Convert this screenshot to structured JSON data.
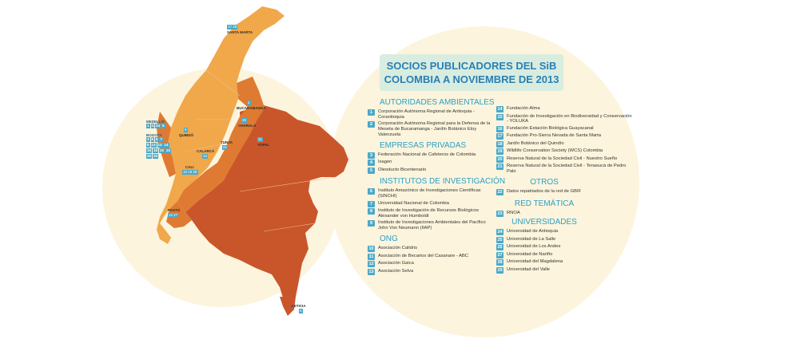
{
  "title": {
    "line1": "SOCIOS PUBLICADORES DEL SiB",
    "line2": "COLOMBIA A NOVIEMBRE DE 2013"
  },
  "colors": {
    "background_circle": "#fcf4dc",
    "title_box": "#d8ede0",
    "title_text": "#2a7fb5",
    "section_heading": "#2aa0c8",
    "number_badge": "#4aa9c9",
    "map_light": "#f0a84a",
    "map_medium": "#df7a32",
    "map_dark": "#c9562b"
  },
  "left_column": [
    {
      "heading": "AUTORIDADES AMBIENTALES",
      "items": [
        {
          "n": "1",
          "text": "Corporación Autónoma Regional de Antioquia - Corantioquia"
        },
        {
          "n": "2",
          "text": "Corporación Autónoma Regional para la Defensa de la Meseta de Bucaramanga - Jardín Botánico Eloy Valenzuela"
        }
      ]
    },
    {
      "heading": "EMPRESAS PRIVADAS",
      "items": [
        {
          "n": "3",
          "text": "Federación Nacional de Cafeteros de Colombia"
        },
        {
          "n": "4",
          "text": "Isagen"
        },
        {
          "n": "5",
          "text": "Oleoducto Bicentenario"
        }
      ]
    },
    {
      "heading": "INSTITUTOS DE INVESTIGACIÓN",
      "items": [
        {
          "n": "6",
          "text": "Instituto Amazónico de Investigaciones Científicas (SINCHI)"
        },
        {
          "n": "7",
          "text": "Universidad Nacional de Colombia"
        },
        {
          "n": "8",
          "text": "Instituto de Investigación de Recursos Biológicos Alexander von Humboldt"
        },
        {
          "n": "9",
          "text": "Instituto de Investigaciones Ambientales del Pacífico John Von Neumann (IIAP)"
        }
      ]
    },
    {
      "heading": "ONG",
      "items": [
        {
          "n": "10",
          "text": "Asociación Calidris"
        },
        {
          "n": "11",
          "text": "Asociación de Becarios del Casanare - ABC"
        },
        {
          "n": "12",
          "text": "Asociación Gaica"
        },
        {
          "n": "13",
          "text": "Asociación Selva"
        }
      ]
    }
  ],
  "right_column": {
    "ong_items": [
      {
        "n": "14",
        "text": "Fundación Alma"
      },
      {
        "n": "15",
        "text": "Fundación de Investigación en Biodiversidad y Conservación - YOLUKA"
      },
      {
        "n": "16",
        "text": "Fundación Estación Biológica Guayacanal"
      },
      {
        "n": "17",
        "text": "Fundación Pro-Sierra Nevada de Santa Marta"
      },
      {
        "n": "18",
        "text": "Jardín Botánico del Quindío"
      },
      {
        "n": "19",
        "text": "Wildlife Conservation Society (WCS) Colombia"
      },
      {
        "n": "20",
        "text": "Reserva Natural de la Sociedad Civil - Nuestro Sueño"
      },
      {
        "n": "21",
        "text": "Reserva Natural de la Sociedad Civil - Tenasucá de Pedro Palo"
      }
    ],
    "otros_heading": "OTROS",
    "otros_items": [
      {
        "n": "22",
        "text": "Datos repatriados de la red de GBIF"
      }
    ],
    "red_heading": "RED TEMÁTICA",
    "red_items": [
      {
        "n": "23",
        "text": "RNOA"
      }
    ],
    "univ_heading": "UNIVERSIDADES",
    "univ_items": [
      {
        "n": "24",
        "text": "Universidad de Antioquia"
      },
      {
        "n": "25",
        "text": "Universidad de La Salle"
      },
      {
        "n": "26",
        "text": "Universidad de Los Andes"
      },
      {
        "n": "27",
        "text": "Universidad de Nariño"
      },
      {
        "n": "28",
        "text": "Universidad del Magdalena"
      },
      {
        "n": "29",
        "text": "Universidad del Valle"
      }
    ]
  },
  "map_labels": {
    "santa_marta": "SANTA MARTA",
    "santa_marta_nums": "17 28",
    "bucaramanga": "BUCARAMANGA",
    "bucaramanga_num": "2",
    "charala": "CHARALÁ",
    "charala_num": "20",
    "yopal": "YOPAL",
    "yopal_num": "11",
    "tunja": "TUNJA",
    "tunja_num": "21",
    "quibdo": "QUIBDÓ",
    "quibdo_num": "9",
    "calarca": "CALARCÁ",
    "calarca_num": "16",
    "cali": "CALI",
    "cali_nums": "10 19 29",
    "pasto": "PASTO",
    "pasto_nums": "12 27",
    "leticia": "LETICIA",
    "leticia_num": "6"
  },
  "side_legend": {
    "medellin": "MEDELLÍN",
    "medellin_nums": [
      "1",
      "4",
      "24",
      "5"
    ],
    "bogota": "BOGOTÁ",
    "bogota_rows": [
      [
        "3",
        "5",
        "6",
        "7"
      ],
      [
        "8",
        "13",
        "13",
        "14"
      ],
      [
        "15",
        "18",
        "22",
        "23"
      ],
      [
        "25",
        "26"
      ]
    ]
  }
}
